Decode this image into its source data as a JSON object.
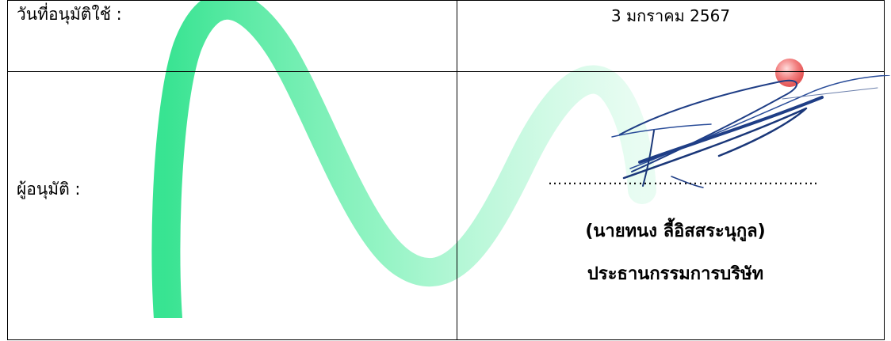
{
  "approval_date": {
    "label": "วันที่อนุมัติใช้ :",
    "value": "3  มกราคม  2567"
  },
  "approver": {
    "label": "ผู้อนุมัติ :",
    "signature_line": "………………………………………………",
    "name": "(นายทนง ลี้อิสสระนุกูล)",
    "position": "ประธานกรรมการบริษัท"
  },
  "colors": {
    "watermark_green": "#33e08a",
    "watermark_red": "#f04848",
    "signature_ink": "#1f3e86"
  }
}
